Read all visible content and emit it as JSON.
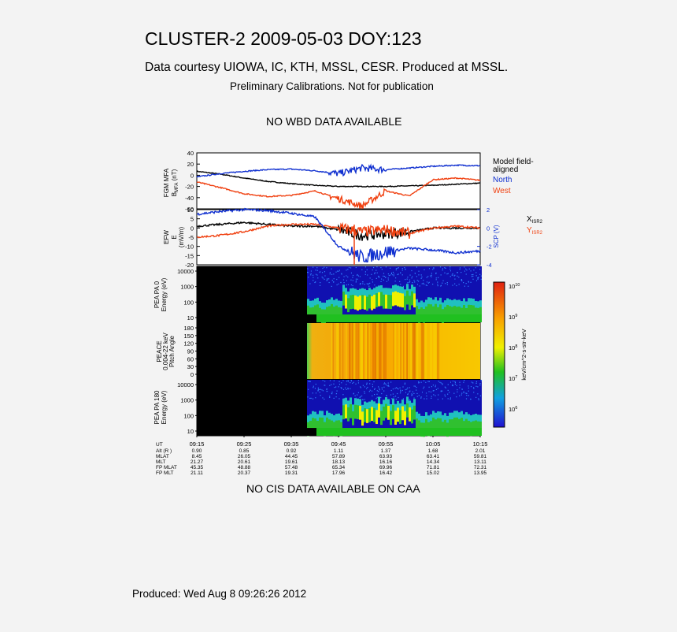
{
  "header": {
    "title": "CLUSTER-2 2009-05-03 DOY:123",
    "subtitle": "Data courtesy UIOWA, IC, KTH, MSSL, CESR. Produced at MSSL.",
    "preliminary": "Preliminary Calibrations. Not for publication",
    "no_wbd": "NO WBD DATA AVAILABLE"
  },
  "footer": {
    "no_cis": "NO CIS DATA AVAILABLE ON CAA",
    "produced": "Produced: Wed Aug  8 09:26:26 2012"
  },
  "colors": {
    "black_trace": "#000000",
    "blue_trace": "#1030d0",
    "red_trace": "#f04010",
    "panel_bg": "#ffffff",
    "spectro_empty": "#000000"
  },
  "chart_data": [
    {
      "type": "line",
      "panel": "FGM",
      "ylabel": "FGM MFA",
      "ylabel2": "B",
      "ylabel2_sub": "MFA",
      "ylabel2_unit": "(nT)",
      "ylim": [
        -60,
        40
      ],
      "yticks": [
        "40",
        "20",
        "0",
        "-20",
        "-40",
        "-60"
      ],
      "legend": [
        "Model field-",
        "aligned",
        "North",
        "West"
      ],
      "series": [
        {
          "name": "Model field-aligned",
          "color": "#000000",
          "x": [
            0,
            5,
            10,
            15,
            20,
            25,
            30,
            35,
            40,
            45,
            50,
            55,
            60
          ],
          "values": [
            7,
            2,
            -5,
            -11,
            -15,
            -18,
            -20,
            -20,
            -20,
            -19,
            -18,
            -16,
            -14
          ]
        },
        {
          "name": "North",
          "color": "#1030d0",
          "x": [
            0,
            5,
            10,
            15,
            20,
            25,
            30,
            35,
            40,
            45,
            50,
            55,
            60
          ],
          "values": [
            -3,
            3,
            7,
            10,
            11,
            8,
            3,
            13,
            10,
            13,
            16,
            18,
            17
          ]
        },
        {
          "name": "West",
          "color": "#f04010",
          "x": [
            0,
            5,
            10,
            15,
            20,
            25,
            30,
            35,
            40,
            45,
            50,
            55,
            60
          ],
          "values": [
            -12,
            -22,
            -33,
            -38,
            -36,
            -28,
            -42,
            -55,
            -28,
            -37,
            -8,
            -5,
            -9
          ]
        }
      ]
    },
    {
      "type": "line",
      "panel": "EFW",
      "ylabel": "EFW",
      "ylabel2": "E",
      "ylabel2_unit": "(mV/m)",
      "ylim": [
        -20,
        10
      ],
      "yticks": [
        "10",
        "5",
        "0",
        "-5",
        "-10",
        "-15",
        "-20"
      ],
      "ylabel_right": "SCP (V)",
      "ylim_right": [
        -4,
        2
      ],
      "yticks_right": [
        "2",
        "0",
        "-2",
        "-4"
      ],
      "legend": [
        {
          "text": "X",
          "sub": "ISR2"
        },
        {
          "text": "Y",
          "sub": "ISR2"
        }
      ],
      "series": [
        {
          "name": "X",
          "color": "#000000",
          "x": [
            0,
            5,
            10,
            15,
            20,
            25,
            30,
            35,
            40,
            45,
            50,
            55,
            60
          ],
          "values": [
            1,
            2,
            3,
            2,
            1,
            1,
            -1,
            -4,
            -3,
            -2,
            0,
            0,
            0
          ]
        },
        {
          "name": "Y",
          "color": "#f04010",
          "x": [
            0,
            5,
            10,
            15,
            20,
            25,
            30,
            35,
            40,
            45,
            50,
            55,
            60
          ],
          "values": [
            -5,
            -4,
            -2,
            1,
            2,
            2,
            0,
            -2,
            -1,
            -3,
            0,
            1,
            0
          ]
        },
        {
          "name": "SCP",
          "color": "#1030d0",
          "x": [
            0,
            5,
            10,
            15,
            20,
            25,
            30,
            35,
            40,
            45,
            50,
            55,
            60
          ],
          "values": [
            1.5,
            1.8,
            2.0,
            1.9,
            1.6,
            1.2,
            -2.0,
            -3.2,
            -2.6,
            -2.2,
            -2.4,
            -2.7,
            -2.5
          ]
        }
      ]
    },
    {
      "type": "heatmap",
      "panel": "PEA PA 0",
      "ylabel": "PEA PA 0",
      "ylabel2": "Energy (eV)",
      "yticks": [
        "10000",
        "1000",
        "100",
        "10"
      ]
    },
    {
      "type": "heatmap",
      "panel": "PEACE pitch angle",
      "ylabel": "PEACE",
      "ylabel2": "0.004-22 keV",
      "ylabel3": "Pitch Angle",
      "yticks": [
        "180",
        "150",
        "120",
        "90",
        "60",
        "30",
        "0"
      ]
    },
    {
      "type": "heatmap",
      "panel": "PEA PA 180",
      "ylabel": "PEA PA 180",
      "ylabel2": "Energy (eV)",
      "yticks": [
        "10000",
        "1000",
        "100",
        "10"
      ]
    },
    {
      "type": "colorbar",
      "label": "keV/cm^2-s-str-keV",
      "ticks": [
        {
          "base": "10",
          "exp": "10"
        },
        {
          "base": "10",
          "exp": "9"
        },
        {
          "base": "10",
          "exp": "8"
        },
        {
          "base": "10",
          "exp": "7"
        },
        {
          "base": "10",
          "exp": "6"
        }
      ]
    },
    {
      "type": "table",
      "panel": "ephemeris",
      "row_labels": [
        "UT",
        "Alt (R )",
        "MLAT",
        "MLT",
        "FP MLAT",
        "FP MLT"
      ],
      "columns": [
        {
          "ut": "09:15",
          "vals": [
            "0.90",
            "8.45",
            "21.27",
            "45.35",
            "21.11"
          ]
        },
        {
          "ut": "09:25",
          "vals": [
            "0.85",
            "26.05",
            "20.61",
            "48.88",
            "20.37"
          ]
        },
        {
          "ut": "09:35",
          "vals": [
            "0.92",
            "44.45",
            "19.61",
            "57.48",
            "19.31"
          ]
        },
        {
          "ut": "09:45",
          "vals": [
            "1.11",
            "57.89",
            "18.13",
            "65.34",
            "17.96"
          ]
        },
        {
          "ut": "09:55",
          "vals": [
            "1.37",
            "63.93",
            "16.16",
            "69.96",
            "16.42"
          ]
        },
        {
          "ut": "10:05",
          "vals": [
            "1.68",
            "63.41",
            "14.34",
            "71.81",
            "15.02"
          ]
        },
        {
          "ut": "10:15",
          "vals": [
            "2.01",
            "59.81",
            "13.11",
            "72.31",
            "13.95"
          ]
        }
      ]
    }
  ]
}
